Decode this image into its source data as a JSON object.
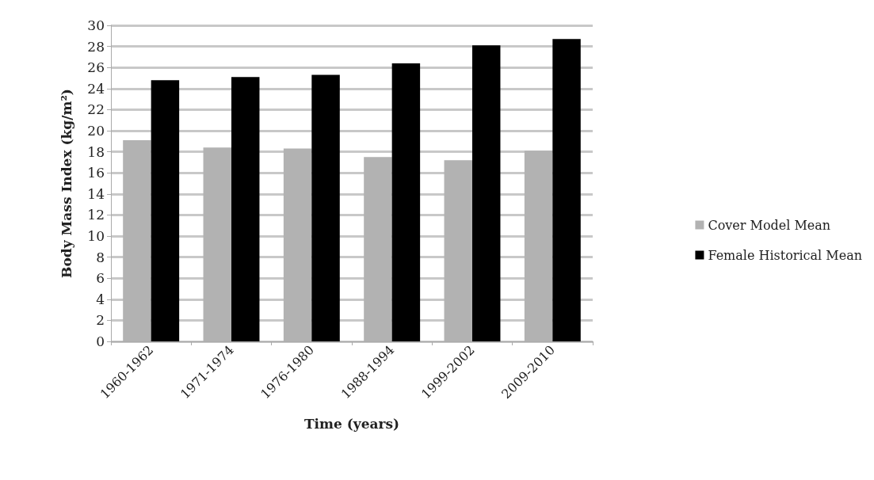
{
  "chart_data": {
    "type": "bar",
    "xlabel": "Time (years)",
    "ylabel": "Body Mass Index (kg/m²)",
    "categories": [
      "1960-1962",
      "1971-1974",
      "1976-1980",
      "1988-1994",
      "1999-2002",
      "2009-2010"
    ],
    "series": [
      {
        "name": "Cover Model Mean",
        "color": "#b2b2b2",
        "values": [
          19.1,
          18.4,
          18.3,
          17.5,
          17.2,
          18.1
        ]
      },
      {
        "name": "Female Historical Mean",
        "color": "#000000",
        "values": [
          24.8,
          25.1,
          25.3,
          26.4,
          28.1,
          28.7
        ]
      }
    ],
    "ylim": [
      0,
      30
    ],
    "yticks": [
      0,
      2,
      4,
      6,
      8,
      10,
      12,
      14,
      16,
      18,
      20,
      22,
      24,
      26,
      28,
      30
    ],
    "grid": "y",
    "legend": "right"
  }
}
